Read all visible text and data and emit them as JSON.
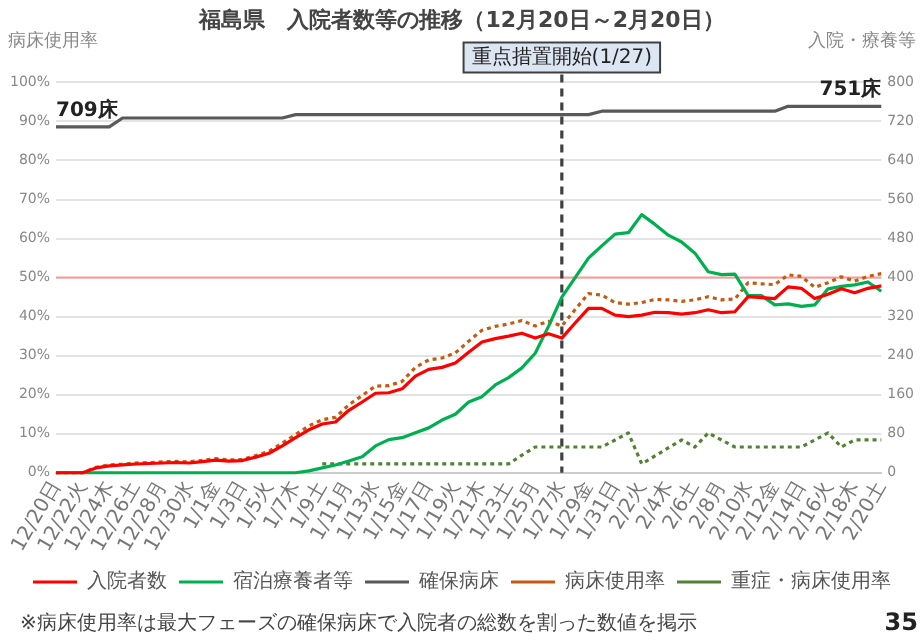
{
  "chart_data": {
    "type": "line",
    "title": "福島県　入院者数等の推移（12月20日～2月20日）",
    "ylabel": "病床使用率",
    "y2label": "入院・療養等",
    "categories": [
      "12/20日",
      null,
      "12/22火",
      null,
      "12/24木",
      null,
      "12/26土",
      null,
      "12/28月",
      null,
      "12/30水",
      null,
      "1/1金",
      null,
      "1/3日",
      null,
      "1/5火",
      null,
      "1/7木",
      null,
      "1/9土",
      null,
      "1/11月",
      null,
      "1/13水",
      null,
      "1/15金",
      null,
      "1/17日",
      null,
      "1/19火",
      null,
      "1/21木",
      null,
      "1/23土",
      null,
      "1/25月",
      null,
      "1/27水",
      null,
      "1/29金",
      null,
      "1/31日",
      null,
      "2/2火",
      null,
      "2/4木",
      null,
      "2/6土",
      null,
      "2/8月",
      null,
      "2/10水",
      null,
      "2/12金",
      null,
      "2/14日",
      null,
      "2/16火",
      null,
      "2/18木",
      null,
      "2/20土"
    ],
    "series": [
      {
        "name": "入院者数",
        "color": "#ff0000",
        "axis": "y2",
        "line_style": "solid",
        "values": [
          0,
          0,
          0,
          10,
          14,
          16,
          18,
          19,
          20,
          21,
          20,
          23,
          26,
          24,
          25,
          32,
          40,
          55,
          72,
          88,
          100,
          104,
          128,
          145,
          163,
          164,
          172,
          198,
          212,
          216,
          225,
          247,
          268,
          275,
          280,
          286,
          276,
          285,
          276,
          307,
          337,
          337,
          323,
          320,
          323,
          329,
          328,
          325,
          328,
          334,
          328,
          330,
          361,
          359,
          357,
          381,
          378,
          357,
          366,
          377,
          369,
          378,
          383
        ]
      },
      {
        "name": "宿泊療養者等",
        "color": "#00b050",
        "axis": "y2",
        "line_style": "solid",
        "values": [
          0,
          0,
          0,
          0,
          0,
          0,
          0,
          0,
          0,
          0,
          0,
          0,
          0,
          0,
          0,
          0,
          0,
          0,
          0,
          4,
          10,
          16,
          24,
          33,
          55,
          68,
          72,
          82,
          92,
          108,
          120,
          145,
          156,
          180,
          195,
          215,
          245,
          300,
          360,
          400,
          440,
          465,
          489,
          492,
          529,
          509,
          487,
          473,
          450,
          412,
          406,
          407,
          363,
          363,
          344,
          346,
          341,
          344,
          377,
          382,
          385,
          391,
          372
        ]
      },
      {
        "name": "確保病床",
        "color": "#595959",
        "axis": "y2",
        "line_style": "solid",
        "value_labels": [
          "709床",
          null,
          null,
          null,
          null,
          null,
          null,
          null,
          null,
          null,
          null,
          null,
          null,
          null,
          null,
          null,
          null,
          null,
          null,
          null,
          null,
          null,
          null,
          null,
          null,
          null,
          null,
          null,
          null,
          null,
          null,
          null,
          null,
          null,
          null,
          null,
          null,
          null,
          null,
          null,
          null,
          null,
          null,
          null,
          null,
          null,
          null,
          null,
          null,
          null,
          null,
          null,
          null,
          null,
          null,
          null,
          null,
          null,
          null,
          null,
          null,
          null,
          "751床"
        ],
        "values": [
          709,
          709,
          709,
          709,
          709,
          727,
          727,
          727,
          727,
          727,
          727,
          727,
          727,
          727,
          727,
          727,
          727,
          727,
          734,
          734,
          734,
          734,
          734,
          734,
          734,
          734,
          734,
          734,
          734,
          734,
          734,
          734,
          734,
          734,
          734,
          734,
          734,
          734,
          734,
          734,
          734,
          741,
          741,
          741,
          741,
          741,
          741,
          741,
          741,
          741,
          741,
          741,
          741,
          741,
          741,
          751,
          751,
          751,
          751,
          751,
          751,
          751,
          751
        ]
      },
      {
        "name": "病床使用率",
        "color": "#c55a11",
        "axis": "y",
        "line_style": "dotted",
        "values": [
          0,
          0,
          0,
          1.4,
          2.0,
          2.2,
          2.5,
          2.6,
          2.8,
          2.9,
          2.8,
          3.2,
          3.6,
          3.3,
          3.4,
          4.4,
          5.5,
          7.6,
          9.8,
          12.0,
          13.6,
          14.2,
          17.4,
          19.8,
          22.2,
          22.3,
          23.4,
          27.0,
          28.9,
          29.4,
          30.7,
          33.7,
          36.5,
          37.5,
          38.1,
          39.0,
          37.6,
          38.8,
          37.6,
          41.8,
          45.9,
          45.5,
          43.6,
          43.2,
          43.6,
          44.4,
          44.3,
          43.9,
          44.3,
          45.1,
          44.3,
          44.5,
          48.7,
          48.4,
          48.2,
          50.7,
          50.3,
          47.5,
          48.7,
          50.2,
          49.1,
          50.3,
          51.0
        ]
      },
      {
        "name": "重症・病床使用率",
        "color": "#548235",
        "axis": "y",
        "line_style": "dotted",
        "values": [
          null,
          null,
          null,
          null,
          null,
          null,
          null,
          null,
          null,
          null,
          null,
          null,
          null,
          null,
          null,
          null,
          null,
          null,
          null,
          null,
          2.3,
          2.3,
          2.3,
          2.3,
          2.3,
          2.3,
          2.3,
          2.3,
          2.3,
          2.3,
          2.3,
          2.3,
          2.3,
          2.3,
          2.3,
          4.5,
          6.6,
          6.6,
          6.6,
          6.6,
          6.6,
          6.6,
          8.4,
          10.2,
          2.3,
          4.3,
          6.4,
          8.4,
          6.6,
          10.2,
          8.4,
          6.6,
          6.6,
          6.6,
          6.6,
          6.6,
          6.6,
          8.4,
          10.2,
          6.6,
          8.4,
          8.4,
          8.4
        ]
      }
    ],
    "ylim": [
      0,
      100
    ],
    "yticks": [
      {
        "value": 0,
        "label": "0%"
      },
      {
        "value": 10,
        "label": "10%"
      },
      {
        "value": 20,
        "label": "20%"
      },
      {
        "value": 30,
        "label": "30%"
      },
      {
        "value": 40,
        "label": "40%"
      },
      {
        "value": 50,
        "label": "50%"
      },
      {
        "value": 60,
        "label": "60%"
      },
      {
        "value": 70,
        "label": "70%"
      },
      {
        "value": 80,
        "label": "80%"
      },
      {
        "value": 90,
        "label": "90%"
      },
      {
        "value": 100,
        "label": "100%"
      }
    ],
    "y2lim": [
      0,
      800
    ],
    "y2ticks": [
      0,
      80,
      160,
      240,
      320,
      400,
      480,
      560,
      640,
      720,
      800
    ],
    "ref_lines": [
      {
        "axis": "y",
        "value": 50,
        "color": "#ff9999",
        "line_style": "solid"
      },
      {
        "axis": "x",
        "value": "1/27水",
        "label": "重点措置開始(1/27)",
        "color": "#404040",
        "line_style": "dashed"
      }
    ],
    "annotations": [
      "※病床使用率は最大フェーズの確保病床で入院者の総数を割った数値を掲示",
      "35"
    ],
    "grid": "y",
    "legend": "bottom",
    "marker": "none"
  }
}
